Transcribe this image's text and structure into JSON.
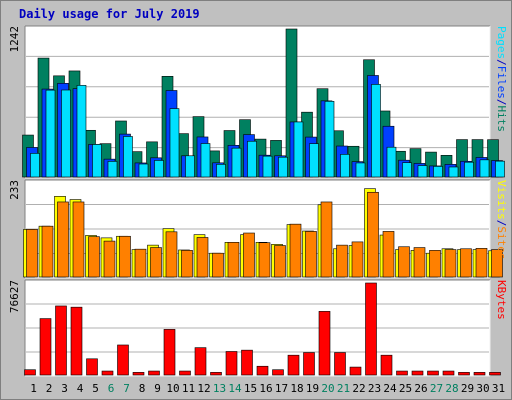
{
  "title": "Daily usage for July 2019",
  "colors": {
    "panel_bg": "#c0c0c0",
    "plot_bg": "#ffffff",
    "grid": "#b0b0b0",
    "hits": "#008060",
    "files": "#0040ff",
    "pages": "#00e0ff",
    "visits": "#ffff00",
    "sites": "#ff8000",
    "kbytes": "#ff0000",
    "weekend_label": "#008060",
    "weekday_label": "#000000",
    "separator": "#0000c0"
  },
  "chart_data": [
    {
      "type": "bar",
      "title": "Daily usage for July 2019",
      "categories": [
        "1",
        "2",
        "3",
        "4",
        "5",
        "6",
        "7",
        "8",
        "9",
        "10",
        "11",
        "12",
        "13",
        "14",
        "15",
        "16",
        "17",
        "18",
        "19",
        "20",
        "21",
        "22",
        "23",
        "24",
        "25",
        "26",
        "27",
        "28",
        "29",
        "30",
        "31"
      ],
      "weekend_days": [
        "6",
        "7",
        "13",
        "14",
        "20",
        "21",
        "27",
        "28"
      ],
      "ymax_label": "1242",
      "ylim": [
        0,
        1242
      ],
      "right_labels": [
        {
          "text": "Hits",
          "color_key": "hits"
        },
        {
          "text": "Files",
          "color_key": "files"
        },
        {
          "text": "Pages",
          "color_key": "pages"
        }
      ],
      "series": [
        {
          "name": "Hits",
          "color_key": "hits",
          "values": [
            352,
            998,
            849,
            890,
            392,
            280,
            470,
            213,
            295,
            845,
            364,
            507,
            219,
            390,
            481,
            318,
            307,
            1242,
            544,
            741,
            388,
            258,
            984,
            554,
            216,
            238,
            209,
            182,
            314,
            314,
            313
          ]
        },
        {
          "name": "Files",
          "color_key": "files",
          "values": [
            248,
            738,
            786,
            741,
            273,
            150,
            360,
            118,
            161,
            726,
            178,
            336,
            119,
            266,
            356,
            183,
            178,
            462,
            335,
            639,
            260,
            129,
            852,
            426,
            141,
            114,
            93,
            106,
            132,
            164,
            138
          ]
        },
        {
          "name": "Pages",
          "color_key": "pages",
          "values": [
            198,
            729,
            730,
            769,
            273,
            131,
            340,
            109,
            139,
            574,
            178,
            281,
            106,
            242,
            300,
            175,
            166,
            462,
            280,
            635,
            190,
            118,
            777,
            250,
            120,
            96,
            89,
            84,
            124,
            144,
            133
          ]
        }
      ]
    },
    {
      "type": "bar",
      "ymax_label": "233",
      "ylim": [
        0,
        233
      ],
      "right_labels": [
        {
          "text": "Sites",
          "color_key": "sites"
        },
        {
          "text": "Visits",
          "color_key": "visits"
        }
      ],
      "series": [
        {
          "name": "Visits",
          "color_key": "visits",
          "values": [
            118,
            126,
            200,
            192,
            103,
            97,
            101,
            68,
            79,
            120,
            67,
            105,
            59,
            86,
            105,
            86,
            81,
            130,
            114,
            179,
            70,
            78,
            219,
            104,
            68,
            66,
            59,
            70,
            68,
            68,
            65
          ]
        },
        {
          "name": "Sites",
          "color_key": "sites",
          "values": [
            118,
            126,
            186,
            186,
            100,
            89,
            101,
            69,
            73,
            112,
            66,
            98,
            59,
            86,
            109,
            85,
            78,
            131,
            113,
            186,
            79,
            87,
            210,
            113,
            75,
            73,
            66,
            68,
            70,
            71,
            68
          ]
        }
      ]
    },
    {
      "type": "bar",
      "ymax_label": "76627",
      "ylim": [
        0,
        76627
      ],
      "right_labels": [
        {
          "text": "KBytes",
          "color_key": "kbytes"
        }
      ],
      "series": [
        {
          "name": "KBytes",
          "color_key": "kbytes",
          "values": [
            4400,
            47000,
            57500,
            56500,
            13500,
            3300,
            25000,
            2200,
            3300,
            38000,
            3300,
            22800,
            2200,
            19600,
            20700,
            7300,
            4400,
            16500,
            18700,
            53000,
            18700,
            6600,
            76627,
            16500,
            3300,
            3300,
            3300,
            3300,
            2200,
            2200,
            2200
          ]
        }
      ]
    }
  ]
}
